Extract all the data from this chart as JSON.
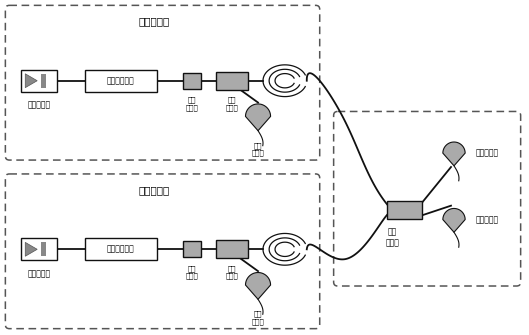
{
  "background_color": "#ffffff",
  "fig_width": 5.29,
  "fig_height": 3.35,
  "dpi": 100,
  "sender1_label": "第一发送端",
  "sender2_label": "第二发送端",
  "src_label": "相干光光源",
  "pm_label": "相位调制单元",
  "att_label": "光衰\n减单元",
  "bs2_label": "第二\n分束器",
  "det3_label": "第三\n探测器",
  "bs1_label": "第一\n分束器",
  "det1_label": "第一探测器",
  "det2_label": "第二探测器",
  "gray": "#aaaaaa",
  "black": "#111111",
  "white": "#ffffff"
}
